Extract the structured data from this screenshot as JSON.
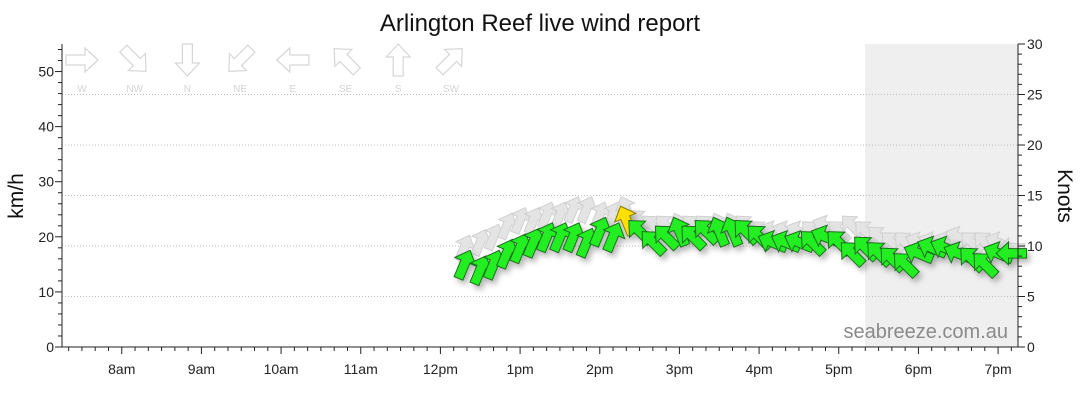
{
  "chart_data": {
    "type": "scatter",
    "title": "Arlington Reef live wind report",
    "ylabel_left": "km/h",
    "ylabel_right": "Knots",
    "watermark": "seabreeze.com.au",
    "x_ticks": [
      "8am",
      "9am",
      "10am",
      "11am",
      "12pm",
      "1pm",
      "2pm",
      "3pm",
      "4pm",
      "5pm",
      "6pm",
      "7pm"
    ],
    "x_range_hours": [
      7.25,
      19.25
    ],
    "y_left_range": [
      0,
      55
    ],
    "y_left_ticks": [
      0,
      10,
      20,
      30,
      40,
      50
    ],
    "y_right_range": [
      0,
      30
    ],
    "y_right_ticks": [
      0,
      5,
      10,
      15,
      20,
      25,
      30
    ],
    "grid": "horizontal dotted",
    "night_shading_from_hour": 17.33,
    "direction_legend": [
      "W",
      "NW",
      "N",
      "NE",
      "E",
      "SE",
      "S",
      "SW"
    ],
    "colors": {
      "normal": "#22ee22",
      "highlight": "#ffe000",
      "gust": "#e4e4e4",
      "outline": "#1f6e1f",
      "night": "#efefef"
    },
    "series": [
      {
        "name": "",
        "units": "km/h",
        "points": [
          {
            "time": "12:18",
            "speed": 15,
            "gust": 18,
            "direction": "SSW"
          },
          {
            "time": "12:30",
            "speed": 14,
            "gust": 19,
            "direction": "SSW"
          },
          {
            "time": "12:40",
            "speed": 15,
            "gust": 20,
            "direction": "SSW"
          },
          {
            "time": "12:50",
            "speed": 17,
            "gust": 22,
            "direction": "SSW"
          },
          {
            "time": "13:00",
            "speed": 18,
            "gust": 23,
            "direction": "SSW"
          },
          {
            "time": "13:10",
            "speed": 19,
            "gust": 23,
            "direction": "SSW"
          },
          {
            "time": "13:20",
            "speed": 20,
            "gust": 24,
            "direction": "SSW"
          },
          {
            "time": "13:30",
            "speed": 20,
            "gust": 24,
            "direction": "SSW"
          },
          {
            "time": "13:40",
            "speed": 20,
            "gust": 25,
            "direction": "SSW"
          },
          {
            "time": "13:50",
            "speed": 19,
            "gust": 25,
            "direction": "SSW"
          },
          {
            "time": "14:00",
            "speed": 21,
            "gust": 24,
            "direction": "SSW"
          },
          {
            "time": "14:10",
            "speed": 20,
            "gust": 24,
            "direction": "SSW"
          },
          {
            "time": "14:20",
            "speed": 23,
            "gust": 25,
            "direction": "SSE",
            "highlight": true
          },
          {
            "time": "14:30",
            "speed": 21,
            "gust": 23,
            "direction": "SE"
          },
          {
            "time": "14:40",
            "speed": 19,
            "gust": 22,
            "direction": "SE"
          },
          {
            "time": "14:50",
            "speed": 20,
            "gust": 22,
            "direction": "SE"
          },
          {
            "time": "15:00",
            "speed": 21,
            "gust": 22,
            "direction": "SSE"
          },
          {
            "time": "15:10",
            "speed": 20,
            "gust": 22,
            "direction": "SE"
          },
          {
            "time": "15:20",
            "speed": 21,
            "gust": 22,
            "direction": "SE"
          },
          {
            "time": "15:30",
            "speed": 21,
            "gust": 22,
            "direction": "SSE"
          },
          {
            "time": "15:40",
            "speed": 21,
            "gust": 22,
            "direction": "SSE"
          },
          {
            "time": "15:50",
            "speed": 21,
            "gust": 22,
            "direction": "SE"
          },
          {
            "time": "16:00",
            "speed": 20,
            "gust": 21,
            "direction": "SE"
          },
          {
            "time": "16:10",
            "speed": 19,
            "gust": 21,
            "direction": "ESE"
          },
          {
            "time": "16:20",
            "speed": 19,
            "gust": 21,
            "direction": "ESE"
          },
          {
            "time": "16:30",
            "speed": 19,
            "gust": 21,
            "direction": "ESE"
          },
          {
            "time": "16:40",
            "speed": 19,
            "gust": 21,
            "direction": "SE"
          },
          {
            "time": "16:50",
            "speed": 20,
            "gust": 22,
            "direction": "ESE"
          },
          {
            "time": "17:00",
            "speed": 19,
            "gust": 21,
            "direction": "SE"
          },
          {
            "time": "17:10",
            "speed": 17,
            "gust": 22,
            "direction": "SE"
          },
          {
            "time": "17:20",
            "speed": 18,
            "gust": 21,
            "direction": "SE"
          },
          {
            "time": "17:30",
            "speed": 17,
            "gust": 20,
            "direction": "SE"
          },
          {
            "time": "17:40",
            "speed": 16,
            "gust": 19,
            "direction": "SE"
          },
          {
            "time": "17:50",
            "speed": 15,
            "gust": 19,
            "direction": "SE"
          },
          {
            "time": "18:00",
            "speed": 17,
            "gust": 19,
            "direction": "ESE"
          },
          {
            "time": "18:10",
            "speed": 18,
            "gust": 19,
            "direction": "ESE"
          },
          {
            "time": "18:20",
            "speed": 18,
            "gust": 19,
            "direction": "ESE"
          },
          {
            "time": "18:30",
            "speed": 17,
            "gust": 20,
            "direction": "ESE"
          },
          {
            "time": "18:40",
            "speed": 16,
            "gust": 19,
            "direction": "SE"
          },
          {
            "time": "18:50",
            "speed": 15,
            "gust": 19,
            "direction": "SE"
          },
          {
            "time": "19:00",
            "speed": 17,
            "gust": 19,
            "direction": "ESE"
          },
          {
            "time": "19:10",
            "speed": 17,
            "gust": 18,
            "direction": "E"
          }
        ]
      }
    ]
  }
}
